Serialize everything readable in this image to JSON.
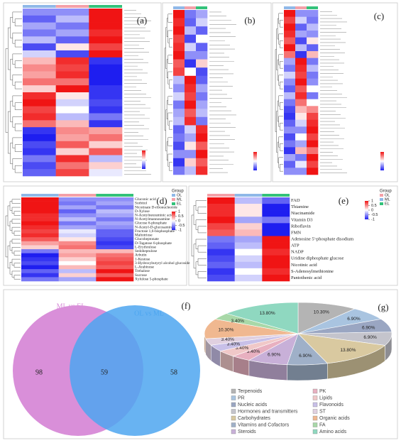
{
  "chart_data": [
    {
      "type": "heatmap",
      "label": "(a)",
      "zlim": [
        -1,
        1
      ],
      "values": [
        [
          -0.5,
          -0.5,
          1
        ],
        [
          -0.7,
          -0.3,
          1
        ],
        [
          -0.4,
          -0.6,
          1
        ],
        [
          -0.6,
          -0.4,
          0.9
        ],
        [
          -0.3,
          -0.7,
          1
        ],
        [
          -0.8,
          0.1,
          0.8
        ],
        [
          -0.2,
          -0.8,
          1
        ],
        [
          0.3,
          0.9,
          -0.9
        ],
        [
          0.5,
          0.8,
          -1
        ],
        [
          0.4,
          0.9,
          -1
        ],
        [
          0.6,
          0.6,
          -1
        ],
        [
          0.2,
          1,
          -0.9
        ],
        [
          0.9,
          0.1,
          -0.9
        ],
        [
          1,
          -0.2,
          -0.8
        ],
        [
          0.8,
          0,
          -0.9
        ],
        [
          0.9,
          -0.3,
          -0.6
        ],
        [
          0.6,
          0.3,
          -0.9
        ],
        [
          -0.9,
          0.5,
          0.4
        ],
        [
          -1,
          0.4,
          0.6
        ],
        [
          -0.8,
          0.7,
          0.2
        ],
        [
          -0.9,
          0.2,
          0.7
        ],
        [
          -0.6,
          0.9,
          -0.3
        ],
        [
          -0.8,
          0.6,
          0.2
        ],
        [
          -0.7,
          0.8,
          -0.1
        ]
      ]
    },
    {
      "type": "heatmap",
      "label": "(b)",
      "zlim": [
        -1,
        1
      ],
      "values": [
        [
          1,
          -0.6,
          -0.4
        ],
        [
          0.9,
          -0.7,
          -0.2
        ],
        [
          1,
          -0.3,
          -0.7
        ],
        [
          0.8,
          -0.8,
          0
        ],
        [
          0.9,
          -0.2,
          -0.7
        ],
        [
          1,
          -0.5,
          -0.5
        ],
        [
          0.7,
          -0.9,
          0.2
        ],
        [
          0.8,
          0,
          -0.8
        ],
        [
          -0.3,
          1,
          -0.7
        ],
        [
          -0.5,
          0.9,
          -0.4
        ],
        [
          -0.2,
          0.8,
          -0.6
        ],
        [
          -0.6,
          1,
          -0.4
        ],
        [
          -0.4,
          0.7,
          -0.3
        ],
        [
          -0.3,
          0.9,
          -0.6
        ],
        [
          -0.7,
          -0.2,
          0.9
        ],
        [
          -0.6,
          -0.4,
          1
        ],
        [
          -0.8,
          0.1,
          0.7
        ],
        [
          -0.5,
          -0.5,
          1
        ],
        [
          -0.9,
          0.2,
          0.7
        ],
        [
          -0.6,
          -0.3,
          0.9
        ]
      ]
    },
    {
      "type": "heatmap",
      "label": "(c)",
      "zlim": [
        -1,
        1
      ],
      "values": [
        [
          1,
          -0.5,
          -0.5
        ],
        [
          0.8,
          -0.2,
          -0.6
        ],
        [
          1,
          -0.7,
          -0.3
        ],
        [
          0.9,
          -0.4,
          -0.5
        ],
        [
          0.7,
          -0.8,
          0.1
        ],
        [
          1,
          -0.3,
          -0.7
        ],
        [
          0.6,
          -0.9,
          0.3
        ],
        [
          -0.4,
          1,
          -0.6
        ],
        [
          -0.6,
          0.9,
          -0.3
        ],
        [
          -0.2,
          0.8,
          -0.6
        ],
        [
          -0.5,
          1,
          -0.5
        ],
        [
          -0.7,
          0.7,
          0
        ],
        [
          -0.3,
          0.9,
          -0.6
        ],
        [
          -0.6,
          0.6,
          0
        ],
        [
          -0.8,
          0.3,
          0.5
        ],
        [
          -0.9,
          0.1,
          0.8
        ],
        [
          -0.7,
          -0.2,
          0.9
        ],
        [
          -0.5,
          -0.5,
          1
        ],
        [
          -0.8,
          0,
          0.8
        ],
        [
          -0.6,
          -0.4,
          1
        ],
        [
          -0.9,
          0.3,
          0.6
        ],
        [
          -0.4,
          -0.6,
          1
        ],
        [
          -0.7,
          -0.1,
          0.8
        ],
        [
          -0.5,
          -0.5,
          1
        ]
      ]
    },
    {
      "type": "heatmap",
      "label": "(d)",
      "zlim": [
        -1,
        1
      ],
      "zticks": [
        1,
        0.5,
        0,
        -0.5,
        -1
      ],
      "legend_title": "Group",
      "groups": [
        {
          "name": "OL",
          "color": "#8fb8e8"
        },
        {
          "name": "ML",
          "color": "#f4a0a8"
        },
        {
          "name": "EL",
          "color": "#33c27a"
        }
      ],
      "rows": [
        "Gluconic acid",
        "Sorbitol",
        "Nicotinate D-ribonucleotide",
        "D-Xylose",
        "N-Acetylneuraminic acid",
        "N-Acetylmannosamine",
        "Glucose 6-phosphate",
        "N-Acetyl-D-glucosamine",
        "Fructose 1,6-bisphosphate",
        "Maltotriose",
        "Glucoheptonate",
        "D-Tagatose 6-phosphate",
        "L-Erythrulose",
        "Sedoheptulose",
        "Arbutin",
        "1-Kestose",
        "3-Hydroxybutyryl alcohol glucoside",
        "L-Arabinose",
        "Trehalose",
        "Sucrose",
        "Xylulose 5-phosphate"
      ],
      "values": [
        [
          1,
          -0.5,
          -0.5
        ],
        [
          1,
          -0.6,
          -0.4
        ],
        [
          1,
          -0.4,
          -0.6
        ],
        [
          1,
          -0.7,
          -0.3
        ],
        [
          0.9,
          -0.5,
          -0.4
        ],
        [
          0.9,
          -0.3,
          -0.6
        ],
        [
          1,
          -0.6,
          -0.4
        ],
        [
          0.9,
          -0.4,
          -0.5
        ],
        [
          0.8,
          -0.1,
          -0.7
        ],
        [
          0.9,
          -0.2,
          -0.7
        ],
        [
          0.7,
          0.1,
          -0.8
        ],
        [
          0.4,
          0.5,
          -0.9
        ],
        [
          0.2,
          0.6,
          -0.8
        ],
        [
          -0.6,
          0.3,
          0.3
        ],
        [
          -1,
          0.4,
          0.6
        ],
        [
          -0.9,
          0.2,
          0.7
        ],
        [
          -0.8,
          0,
          0.8
        ],
        [
          -1,
          0.3,
          0.7
        ],
        [
          -0.7,
          -0.3,
          1
        ],
        [
          -0.9,
          0.2,
          0.7
        ],
        [
          -0.6,
          -0.4,
          1
        ]
      ]
    },
    {
      "type": "heatmap",
      "label": "(e)",
      "zlim": [
        -1,
        1
      ],
      "zticks": [
        1,
        0.5,
        0,
        -0.5,
        -1
      ],
      "legend_title": "Group",
      "groups": [
        {
          "name": "OL",
          "color": "#f4a0a8"
        },
        {
          "name": "ML",
          "color": "#8fb8e8"
        },
        {
          "name": "EL",
          "color": "#33c27a"
        }
      ],
      "rows": [
        "FAD",
        "Thiamine",
        "Niacinamide",
        "Vitamin D3",
        "Riboflavin",
        "FMN",
        "Adenosine 5'-phosphate disodium",
        "ATP",
        "NADP",
        "Uridine diphosphate glucose",
        "Nicotinic acid",
        "S-Adenosylmethionine",
        "Pantothenic acid"
      ],
      "values": [
        [
          1,
          -0.3,
          -0.7
        ],
        [
          0.9,
          0.1,
          -1
        ],
        [
          0.9,
          0.1,
          -1
        ],
        [
          1,
          -0.4,
          -0.6
        ],
        [
          0.8,
          0.2,
          -1
        ],
        [
          0.7,
          0.3,
          -1
        ],
        [
          -0.6,
          -0.4,
          1
        ],
        [
          -0.7,
          -0.3,
          1
        ],
        [
          -0.9,
          0,
          0.9
        ],
        [
          -0.8,
          -0.2,
          1
        ],
        [
          -0.7,
          -0.3,
          1
        ],
        [
          -0.9,
          0,
          0.9
        ],
        [
          -0.8,
          -0.2,
          1
        ]
      ]
    },
    {
      "type": "venn",
      "label": "(f)",
      "sets": [
        {
          "name": "ML vs EL",
          "color": "#d98fd9"
        },
        {
          "name": "OL vs ML",
          "color": "#4da6f0"
        }
      ],
      "only_first": 98,
      "both": 59,
      "only_second": 58
    },
    {
      "type": "pie",
      "label": "(g)",
      "categories": [
        "Terpenoids",
        "PR",
        "Nucleic acids",
        "Hormones and transmitters",
        "Carbohydrates",
        "Vitamins and Cofactors",
        "Steroids",
        "PK",
        "Lipids",
        "Flavonoids",
        "ST",
        "Organic acids",
        "FA",
        "Amino acids"
      ],
      "values": [
        10.3,
        6.9,
        6.9,
        6.9,
        13.8,
        6.9,
        6.9,
        3.4,
        3.4,
        3.4,
        3.4,
        10.3,
        3.4,
        13.8
      ],
      "value_labels": [
        "10.30%",
        "6.90%",
        "6.90%",
        "6.90%",
        "13.80%",
        "6.90%",
        "6.90%",
        "3.40%",
        "3.40%",
        "3.40%",
        "3.40%",
        "10.30%",
        "3.40%",
        "13.80%"
      ],
      "colors": [
        "#b4b4b4",
        "#a9c4e0",
        "#9aa6c2",
        "#c4c4cc",
        "#d9c9a0",
        "#9fb0c8",
        "#c8b0d8",
        "#e8b0c0",
        "#f0c8c8",
        "#c8c0e8",
        "#e0d0e0",
        "#f0b890",
        "#a8d8a8",
        "#8fd8c0"
      ]
    }
  ]
}
